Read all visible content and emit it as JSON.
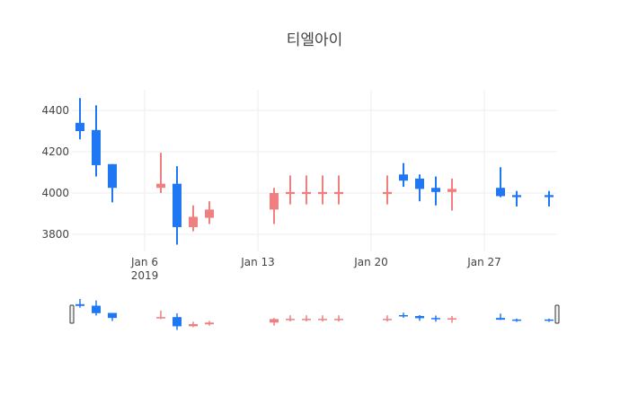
{
  "chart_data": {
    "type": "candlestick",
    "title": "티엘아이",
    "xlabel": "",
    "ylabel": "",
    "ylim": [
      3700,
      4480
    ],
    "y_ticks": [
      3800,
      4000,
      4200,
      4400
    ],
    "x_ticks": [
      {
        "date": "2019-01-06",
        "label": "Jan 6",
        "sublabel": "2019"
      },
      {
        "date": "2019-01-13",
        "label": "Jan 13",
        "sublabel": ""
      },
      {
        "date": "2019-01-20",
        "label": "Jan 20",
        "sublabel": ""
      },
      {
        "date": "2019-01-27",
        "label": "Jan 27",
        "sublabel": ""
      }
    ],
    "x_range": [
      "2019-01-01.5",
      "2019-01-31.5"
    ],
    "grid": true,
    "rangeslider": true,
    "increasing_color": "#f08080",
    "decreasing_color": "#1f77f4",
    "candles": [
      {
        "date": "2019-01-02",
        "open": 4340,
        "high": 4460,
        "low": 4260,
        "close": 4300
      },
      {
        "date": "2019-01-03",
        "open": 4305,
        "high": 4425,
        "low": 4080,
        "close": 4135
      },
      {
        "date": "2019-01-04",
        "open": 4140,
        "high": 4140,
        "low": 3955,
        "close": 4025
      },
      {
        "date": "2019-01-07",
        "open": 4025,
        "high": 4195,
        "low": 4000,
        "close": 4045
      },
      {
        "date": "2019-01-08",
        "open": 4045,
        "high": 4130,
        "low": 3750,
        "close": 3835
      },
      {
        "date": "2019-01-09",
        "open": 3835,
        "high": 3940,
        "low": 3815,
        "close": 3885
      },
      {
        "date": "2019-01-10",
        "open": 3880,
        "high": 3960,
        "low": 3850,
        "close": 3920
      },
      {
        "date": "2019-01-14",
        "open": 3920,
        "high": 4025,
        "low": 3850,
        "close": 4000
      },
      {
        "date": "2019-01-15",
        "open": 3995,
        "high": 4085,
        "low": 3945,
        "close": 4005
      },
      {
        "date": "2019-01-16",
        "open": 3995,
        "high": 4085,
        "low": 3945,
        "close": 4005
      },
      {
        "date": "2019-01-17",
        "open": 3995,
        "high": 4085,
        "low": 3945,
        "close": 4005
      },
      {
        "date": "2019-01-18",
        "open": 3995,
        "high": 4085,
        "low": 3945,
        "close": 4005
      },
      {
        "date": "2019-01-21",
        "open": 3995,
        "high": 4085,
        "low": 3945,
        "close": 4005
      },
      {
        "date": "2019-01-22",
        "open": 4090,
        "high": 4145,
        "low": 4030,
        "close": 4060
      },
      {
        "date": "2019-01-23",
        "open": 4070,
        "high": 4090,
        "low": 3960,
        "close": 4020
      },
      {
        "date": "2019-01-24",
        "open": 4025,
        "high": 4080,
        "low": 3940,
        "close": 4005
      },
      {
        "date": "2019-01-25",
        "open": 4005,
        "high": 4070,
        "low": 3915,
        "close": 4020
      },
      {
        "date": "2019-01-28",
        "open": 4025,
        "high": 4125,
        "low": 3980,
        "close": 3985
      },
      {
        "date": "2019-01-29",
        "open": 3990,
        "high": 4010,
        "low": 3935,
        "close": 3980
      },
      {
        "date": "2019-01-31",
        "open": 3990,
        "high": 4010,
        "low": 3935,
        "close": 3980
      }
    ]
  }
}
